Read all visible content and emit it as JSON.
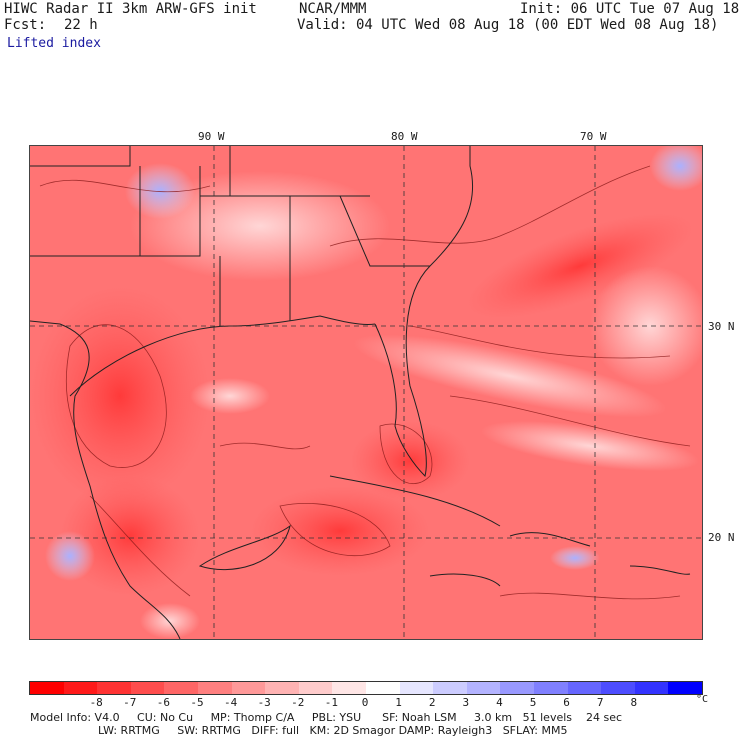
{
  "header": {
    "title_left": "HIWC Radar II 3km ARW-GFS init",
    "ncar": "NCAR/MMM",
    "init": "Init: 06 UTC Tue 07 Aug 18",
    "fcst_label": "Fcst:",
    "fcst_value": "22 h",
    "valid": "Valid: 04 UTC Wed 08 Aug 18 (00 EDT Wed 08 Aug 18)",
    "field": "Lifted index"
  },
  "map": {
    "lon_labels": [
      "90 W",
      "80 W",
      "70 W"
    ],
    "lat_labels": [
      "30 N",
      "20 N"
    ]
  },
  "colorbar": {
    "colors": [
      "#ff0000",
      "#ff1a1a",
      "#ff3333",
      "#ff4d4d",
      "#ff6666",
      "#ff8080",
      "#ff9999",
      "#ffb3b3",
      "#ffcccc",
      "#ffe6e6",
      "#ffffff",
      "#e6e6ff",
      "#ccccff",
      "#b3b3ff",
      "#9999ff",
      "#8080ff",
      "#6666ff",
      "#4d4dff",
      "#3333ff",
      "#0000ff"
    ],
    "tick_labels": [
      "-8",
      "-7",
      "-6",
      "-5",
      "-4",
      "-3",
      "-2",
      "-1",
      "0",
      "1",
      "2",
      "3",
      "4",
      "5",
      "6",
      "7",
      "8"
    ],
    "unit": "°C"
  },
  "model_info": {
    "line1": "Model Info: V4.0     CU: No Cu     MP: Thomp C/A     PBL: YSU      SF: Noah LSM     3.0 km   51 levels    24 sec",
    "line2": "LW: RRTMG     SW: RRTMG   DIFF: full   KM: 2D Smagor DAMP: Rayleigh3   SFLAY: MM5"
  }
}
